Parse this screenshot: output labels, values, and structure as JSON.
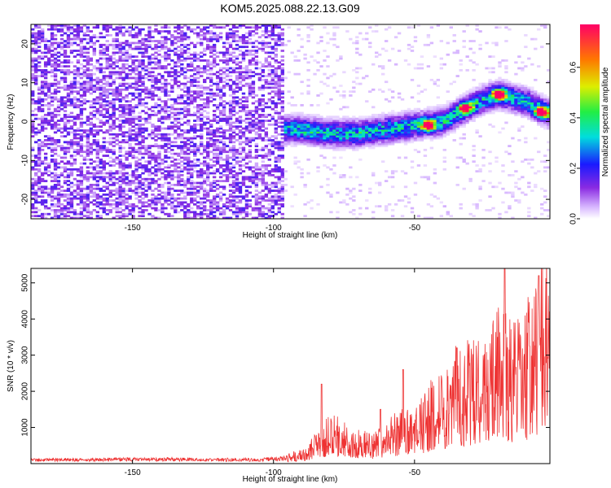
{
  "title": "KOM5.2025.088.22.13.G09",
  "chart_data": [
    {
      "type": "heatmap",
      "xlabel": "Height of straight line (km)",
      "ylabel": "Frequency (Hz)",
      "xlim": [
        -186,
        -2
      ],
      "ylim": [
        -25,
        25
      ],
      "xticks": [
        -150,
        -100,
        -50
      ],
      "yticks": [
        -20,
        -10,
        0,
        10,
        20
      ],
      "colorbar": {
        "label": "Normalized spectral amplitude",
        "range": [
          0,
          0.77
        ],
        "ticks": [
          0.0,
          0.2,
          0.4,
          0.6
        ]
      },
      "noise_region": {
        "x": [
          -186,
          -96
        ],
        "y": [
          -25,
          25
        ],
        "typical_amplitude": 0.1
      },
      "signal_ridge": [
        {
          "x": -100,
          "y": -2
        },
        {
          "x": -90,
          "y": -2
        },
        {
          "x": -80,
          "y": -3
        },
        {
          "x": -70,
          "y": -3
        },
        {
          "x": -60,
          "y": -2
        },
        {
          "x": -50,
          "y": -1
        },
        {
          "x": -40,
          "y": 0
        },
        {
          "x": -35,
          "y": 2
        },
        {
          "x": -30,
          "y": 4
        },
        {
          "x": -25,
          "y": 6
        },
        {
          "x": -20,
          "y": 7
        },
        {
          "x": -15,
          "y": 6
        },
        {
          "x": -10,
          "y": 5
        },
        {
          "x": -5,
          "y": 3
        },
        {
          "x": -2,
          "y": 2
        }
      ],
      "peaks": [
        {
          "x": -45,
          "y": -1,
          "amplitude": 0.72
        },
        {
          "x": -32,
          "y": 3.5,
          "amplitude": 0.7
        },
        {
          "x": -20,
          "y": 7,
          "amplitude": 0.75
        },
        {
          "x": -5,
          "y": 2.5,
          "amplitude": 0.77
        }
      ]
    },
    {
      "type": "line",
      "xlabel": "Height of straight line (km)",
      "ylabel": "SNR (10 * v/v)",
      "xlim": [
        -186,
        -2
      ],
      "ylim": [
        0,
        5400
      ],
      "xticks": [
        -150,
        -100,
        -50
      ],
      "yticks": [
        1000,
        2000,
        3000,
        4000,
        5000
      ],
      "color": "#ee3333",
      "series": [
        {
          "x": [
            -186,
            -175,
            -165,
            -155,
            -145,
            -135,
            -125,
            -115,
            -105,
            -100,
            -95,
            -90,
            -85,
            -80,
            -75,
            -70,
            -65,
            -60,
            -55,
            -50,
            -45,
            -40,
            -35,
            -30,
            -25,
            -20,
            -15,
            -10,
            -7,
            -4,
            -2
          ],
          "y": [
            100,
            110,
            100,
            120,
            110,
            120,
            100,
            110,
            100,
            130,
            150,
            250,
            500,
            800,
            700,
            600,
            500,
            700,
            900,
            900,
            1300,
            1600,
            1900,
            2000,
            2200,
            2500,
            2300,
            2600,
            3000,
            3400,
            3700
          ]
        }
      ],
      "peaks": [
        {
          "x": -83,
          "y": 2200
        },
        {
          "x": -62,
          "y": 1500
        },
        {
          "x": -54,
          "y": 2600
        },
        {
          "x": -35,
          "y": 3200
        },
        {
          "x": -18,
          "y": 5400
        },
        {
          "x": -6,
          "y": 5200
        },
        {
          "x": -2,
          "y": 4200
        }
      ]
    }
  ]
}
